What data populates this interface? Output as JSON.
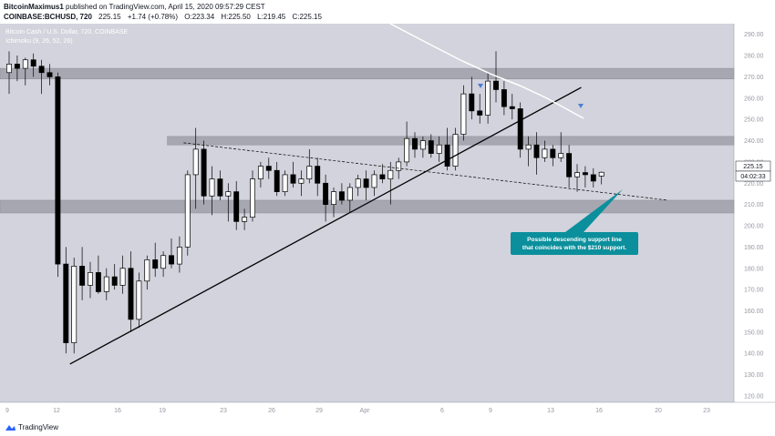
{
  "header": {
    "author": "BitcoinMaximus1",
    "published": "published on TradingView.com, April 15, 2020 09:57:29 CEST",
    "symbol": "COINBASE:BCHUSD, 720",
    "last": "225.15",
    "change": "+1.74 (+0.78%)",
    "o_label": "O:",
    "o_value": "223.34",
    "h_label": "H:",
    "h_value": "225.50",
    "l_label": "L:",
    "l_value": "219.45",
    "c_label": "C:",
    "c_value": "225.15"
  },
  "chart_title": "Bitcoin Cash / U.S. Dollar, 720, COINBASE",
  "indicator": "Ichimoku (9, 26, 52, 26)",
  "annotation": "Possible descending support line that coincides with the $210 support.",
  "annotation_lines": [
    "Possible descending support line",
    "that coincides with the $210 support."
  ],
  "price_label": "225.15",
  "countdown_label": "04:02:33",
  "footer": {
    "brand": "TradingView"
  },
  "colors": {
    "plot_bg": "#d2d3dc",
    "zone": "#a6a7b1",
    "candle_up": "#ffffff",
    "candle_down": "#000000",
    "white_line": "#ffffff",
    "arrow": "#4a7fd6",
    "annotation_bg": "#0b8f9c"
  },
  "chart_data": {
    "type": "candlestick",
    "title": "Bitcoin Cash / U.S. Dollar, 720, COINBASE",
    "y_axis": {
      "ticks": [
        120,
        130,
        140,
        150,
        160,
        170,
        180,
        190,
        200,
        210,
        220,
        230,
        240,
        250,
        260,
        270,
        280,
        290
      ],
      "range": [
        117,
        295
      ],
      "side": "right"
    },
    "x_axis": {
      "ticks": [
        "9",
        "12",
        "16",
        "19",
        "23",
        "26",
        "29",
        "Apr",
        "6",
        "9",
        "13",
        "16",
        "20",
        "23"
      ]
    },
    "support_resistance_zones": [
      [
        269,
        274
      ],
      [
        238,
        242
      ],
      [
        206,
        212
      ]
    ],
    "trend_lines": [
      {
        "style": "solid",
        "from_date": "Mar 12",
        "from_price": 135,
        "to_date": "Apr 10",
        "to_price": 265
      },
      {
        "style": "dashed",
        "from_date": "Mar 19",
        "from_price": 239,
        "to_date": "Apr 19",
        "to_price": 212
      }
    ],
    "candles": [
      {
        "o": 272,
        "h": 282,
        "l": 262,
        "c": 276
      },
      {
        "o": 276,
        "h": 280,
        "l": 268,
        "c": 274
      },
      {
        "o": 274,
        "h": 279,
        "l": 266,
        "c": 278
      },
      {
        "o": 278,
        "h": 281,
        "l": 270,
        "c": 275
      },
      {
        "o": 275,
        "h": 278,
        "l": 262,
        "c": 272
      },
      {
        "o": 272,
        "h": 276,
        "l": 266,
        "c": 270
      },
      {
        "o": 270,
        "h": 272,
        "l": 176,
        "c": 182
      },
      {
        "o": 182,
        "h": 190,
        "l": 140,
        "c": 145
      },
      {
        "o": 145,
        "h": 185,
        "l": 140,
        "c": 181
      },
      {
        "o": 181,
        "h": 190,
        "l": 165,
        "c": 172
      },
      {
        "o": 172,
        "h": 183,
        "l": 166,
        "c": 178
      },
      {
        "o": 178,
        "h": 186,
        "l": 168,
        "c": 169
      },
      {
        "o": 169,
        "h": 180,
        "l": 165,
        "c": 176
      },
      {
        "o": 176,
        "h": 182,
        "l": 170,
        "c": 172
      },
      {
        "o": 172,
        "h": 186,
        "l": 168,
        "c": 180
      },
      {
        "o": 180,
        "h": 188,
        "l": 150,
        "c": 156
      },
      {
        "o": 156,
        "h": 178,
        "l": 152,
        "c": 174
      },
      {
        "o": 174,
        "h": 186,
        "l": 170,
        "c": 184
      },
      {
        "o": 184,
        "h": 192,
        "l": 176,
        "c": 180
      },
      {
        "o": 180,
        "h": 188,
        "l": 176,
        "c": 186
      },
      {
        "o": 186,
        "h": 194,
        "l": 180,
        "c": 182
      },
      {
        "o": 182,
        "h": 195,
        "l": 178,
        "c": 190
      },
      {
        "o": 190,
        "h": 226,
        "l": 186,
        "c": 224
      },
      {
        "o": 224,
        "h": 246,
        "l": 208,
        "c": 236
      },
      {
        "o": 236,
        "h": 240,
        "l": 210,
        "c": 214
      },
      {
        "o": 214,
        "h": 228,
        "l": 205,
        "c": 222
      },
      {
        "o": 222,
        "h": 226,
        "l": 212,
        "c": 214
      },
      {
        "o": 214,
        "h": 220,
        "l": 202,
        "c": 216
      },
      {
        "o": 216,
        "h": 221,
        "l": 198,
        "c": 202
      },
      {
        "o": 202,
        "h": 208,
        "l": 198,
        "c": 204
      },
      {
        "o": 204,
        "h": 226,
        "l": 202,
        "c": 222
      },
      {
        "o": 222,
        "h": 230,
        "l": 218,
        "c": 228
      },
      {
        "o": 228,
        "h": 232,
        "l": 222,
        "c": 226
      },
      {
        "o": 226,
        "h": 230,
        "l": 214,
        "c": 216
      },
      {
        "o": 216,
        "h": 226,
        "l": 214,
        "c": 224
      },
      {
        "o": 224,
        "h": 230,
        "l": 218,
        "c": 220
      },
      {
        "o": 220,
        "h": 226,
        "l": 214,
        "c": 222
      },
      {
        "o": 222,
        "h": 236,
        "l": 220,
        "c": 228
      },
      {
        "o": 228,
        "h": 232,
        "l": 214,
        "c": 220
      },
      {
        "o": 220,
        "h": 224,
        "l": 202,
        "c": 210
      },
      {
        "o": 210,
        "h": 218,
        "l": 204,
        "c": 216
      },
      {
        "o": 216,
        "h": 220,
        "l": 210,
        "c": 212
      },
      {
        "o": 212,
        "h": 220,
        "l": 206,
        "c": 218
      },
      {
        "o": 218,
        "h": 224,
        "l": 214,
        "c": 222
      },
      {
        "o": 222,
        "h": 226,
        "l": 212,
        "c": 218
      },
      {
        "o": 218,
        "h": 226,
        "l": 214,
        "c": 224
      },
      {
        "o": 224,
        "h": 229,
        "l": 220,
        "c": 222
      },
      {
        "o": 222,
        "h": 230,
        "l": 210,
        "c": 226
      },
      {
        "o": 226,
        "h": 232,
        "l": 222,
        "c": 230
      },
      {
        "o": 230,
        "h": 249,
        "l": 228,
        "c": 241
      },
      {
        "o": 241,
        "h": 244,
        "l": 232,
        "c": 236
      },
      {
        "o": 236,
        "h": 242,
        "l": 232,
        "c": 240
      },
      {
        "o": 240,
        "h": 243,
        "l": 232,
        "c": 234
      },
      {
        "o": 234,
        "h": 242,
        "l": 230,
        "c": 238
      },
      {
        "o": 238,
        "h": 246,
        "l": 226,
        "c": 228
      },
      {
        "o": 228,
        "h": 246,
        "l": 226,
        "c": 243
      },
      {
        "o": 243,
        "h": 266,
        "l": 240,
        "c": 262
      },
      {
        "o": 262,
        "h": 270,
        "l": 250,
        "c": 254
      },
      {
        "o": 254,
        "h": 262,
        "l": 248,
        "c": 252
      },
      {
        "o": 252,
        "h": 272,
        "l": 248,
        "c": 268
      },
      {
        "o": 268,
        "h": 282,
        "l": 258,
        "c": 264
      },
      {
        "o": 264,
        "h": 268,
        "l": 252,
        "c": 256
      },
      {
        "o": 256,
        "h": 262,
        "l": 250,
        "c": 255
      },
      {
        "o": 255,
        "h": 258,
        "l": 232,
        "c": 236
      },
      {
        "o": 236,
        "h": 242,
        "l": 228,
        "c": 238
      },
      {
        "o": 238,
        "h": 244,
        "l": 224,
        "c": 232
      },
      {
        "o": 232,
        "h": 240,
        "l": 230,
        "c": 236
      },
      {
        "o": 236,
        "h": 238,
        "l": 228,
        "c": 232
      },
      {
        "o": 232,
        "h": 244,
        "l": 230,
        "c": 234
      },
      {
        "o": 234,
        "h": 238,
        "l": 218,
        "c": 223
      },
      {
        "o": 223,
        "h": 229,
        "l": 216,
        "c": 225
      },
      {
        "o": 225,
        "h": 228,
        "l": 218,
        "c": 224
      },
      {
        "o": 224,
        "h": 227,
        "l": 218,
        "c": 221
      },
      {
        "o": 223.34,
        "h": 225.5,
        "l": 219.45,
        "c": 225.15
      }
    ]
  }
}
